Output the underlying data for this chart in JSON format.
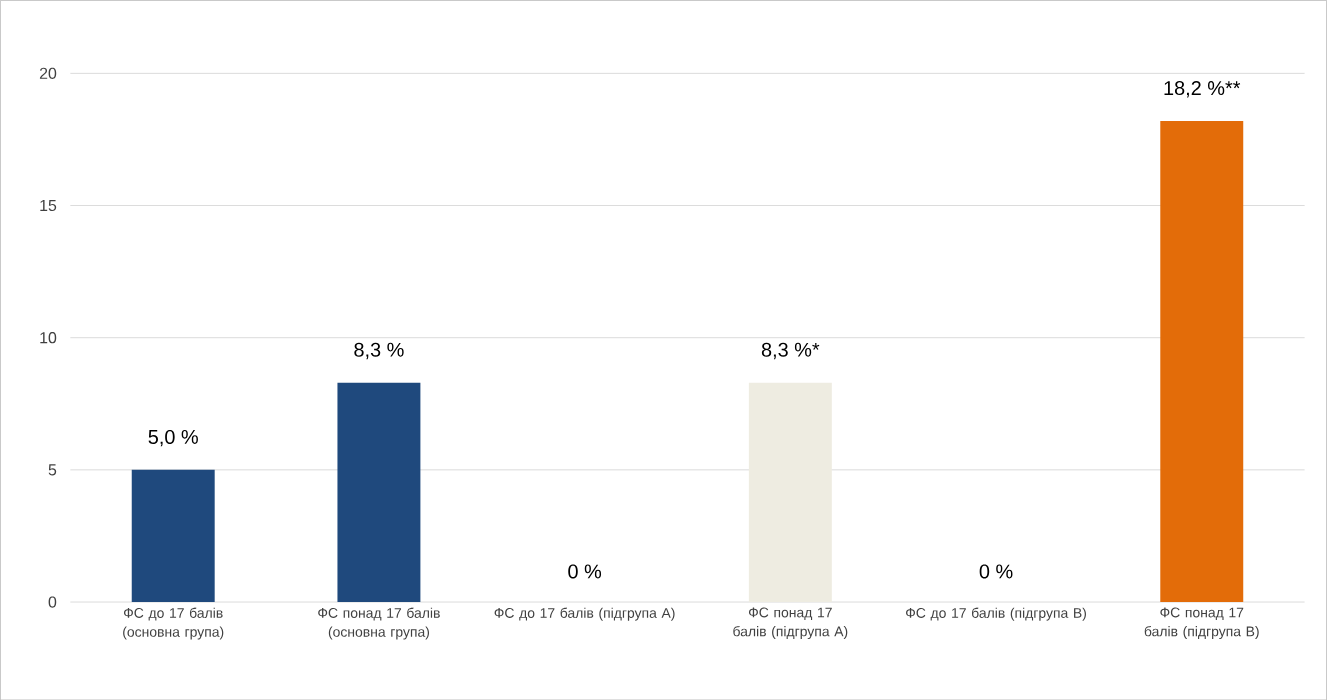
{
  "chart_data": {
    "type": "bar",
    "categories": [
      "ФС до 17 балів (основна група)",
      "ФС понад 17 балів (основна група)",
      "ФС до 17 балів (підгрупа А)",
      "ФС понад 17 балів (підгрупа А)",
      "ФС до 17 балів (підгрупа В)",
      "ФС понад 17 балів (підгрупа В)"
    ],
    "values": [
      5.0,
      8.3,
      0,
      8.3,
      0,
      18.2
    ],
    "colors": [
      "#1f497d",
      "#1f497d",
      "#1f497d",
      "#eeece1",
      "#eeece1",
      "#e36c09"
    ],
    "value_labels": [
      "5,0 %",
      "8,3 %",
      "0 %",
      "8,3 %*",
      "0 %",
      "18,2 %**"
    ],
    "ylim": [
      0,
      20
    ],
    "yticks": [
      0,
      5,
      10,
      15,
      20
    ],
    "grid": "y"
  }
}
